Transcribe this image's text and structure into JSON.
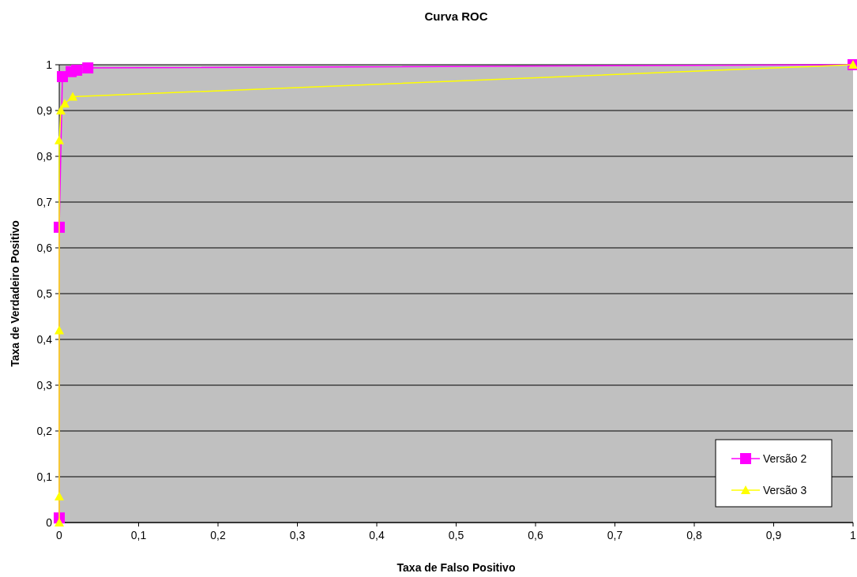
{
  "chart_data": {
    "type": "line",
    "title": "Curva ROC",
    "xlabel": "Taxa de Falso Positivo",
    "ylabel": "Taxa de Verdadeiro Positivo",
    "xlim": [
      0,
      1
    ],
    "ylim": [
      0,
      1
    ],
    "xticks": [
      0,
      {
        "value": 0.1,
        "label": "0,1"
      },
      {
        "value": 0.2,
        "label": "0,2"
      },
      {
        "value": 0.3,
        "label": "0,3"
      },
      {
        "value": 0.4,
        "label": "0,4"
      },
      {
        "value": 0.5,
        "label": "0,5"
      },
      {
        "value": 0.6,
        "label": "0,6"
      },
      {
        "value": 0.7,
        "label": "0,7"
      },
      {
        "value": 0.8,
        "label": "0,8"
      },
      {
        "value": 0.9,
        "label": "0,9"
      },
      1
    ],
    "yticks": [
      0,
      {
        "value": 0.1,
        "label": "0,1"
      },
      {
        "value": 0.2,
        "label": "0,2"
      },
      {
        "value": 0.3,
        "label": "0,3"
      },
      {
        "value": 0.4,
        "label": "0,4"
      },
      {
        "value": 0.5,
        "label": "0,5"
      },
      {
        "value": 0.6,
        "label": "0,6"
      },
      {
        "value": 0.7,
        "label": "0,7"
      },
      {
        "value": 0.8,
        "label": "0,8"
      },
      {
        "value": 0.9,
        "label": "0,9"
      },
      1
    ],
    "grid": "y",
    "legend": "bottom right",
    "series": [
      {
        "name": "Versão 2",
        "color": "#ff00ff",
        "marker": "square",
        "x": [
          0,
          0,
          0.004,
          0.015,
          0.022,
          0.036,
          1
        ],
        "values": [
          0.01,
          0.645,
          0.974,
          0.985,
          0.988,
          0.993,
          1
        ]
      },
      {
        "name": "Versão 3",
        "color": "#ffff00",
        "marker": "triangle",
        "x": [
          0,
          0,
          0,
          0,
          0.002,
          0.007,
          0.017,
          1
        ],
        "values": [
          0,
          0.057,
          0.42,
          0.835,
          0.9,
          0.915,
          0.93,
          1
        ]
      }
    ]
  }
}
